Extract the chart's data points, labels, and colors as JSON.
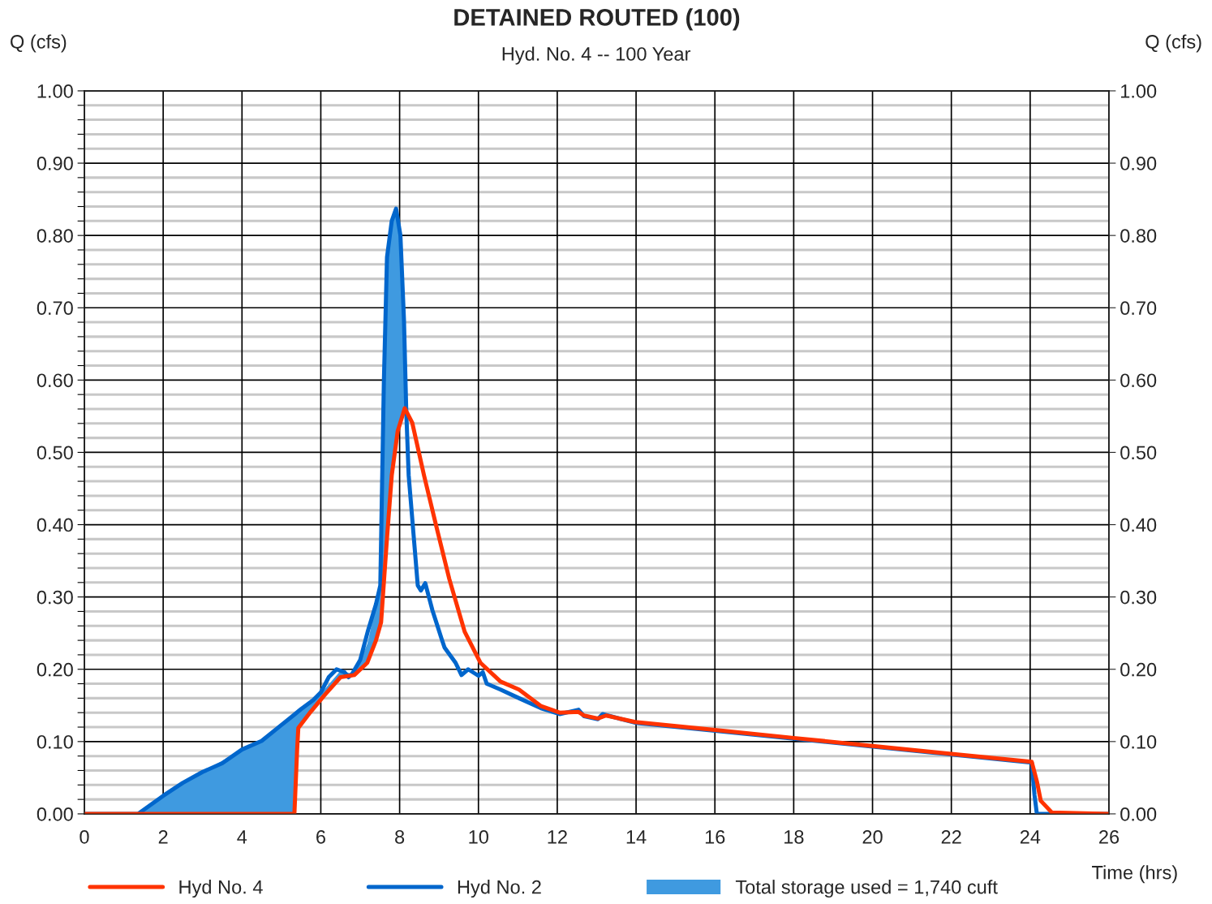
{
  "chart_data": {
    "type": "line",
    "title": "DETAINED ROUTED (100)",
    "subtitle": "Hyd. No. 4 -- 100 Year",
    "xlabel": "Time (hrs)",
    "ylabel": "Q (cfs)",
    "y2label": "Q (cfs)",
    "xlim": [
      0,
      26
    ],
    "xticks": [
      0,
      2,
      4,
      6,
      8,
      10,
      12,
      14,
      16,
      18,
      20,
      22,
      24,
      26
    ],
    "ylim": [
      0,
      1
    ],
    "yticks": [
      {
        "value": 0,
        "label": "0.00"
      },
      {
        "value": 0.02,
        "label": null
      },
      {
        "value": 0.04,
        "label": null
      },
      {
        "value": 0.06,
        "label": null
      },
      {
        "value": 0.08,
        "label": null
      },
      {
        "value": 0.1,
        "label": "0.10"
      },
      {
        "value": 0.12,
        "label": null
      },
      {
        "value": 0.14,
        "label": null
      },
      {
        "value": 0.16,
        "label": null
      },
      {
        "value": 0.18,
        "label": null
      },
      {
        "value": 0.2,
        "label": "0.20"
      },
      {
        "value": 0.22,
        "label": null
      },
      {
        "value": 0.24,
        "label": null
      },
      {
        "value": 0.26,
        "label": null
      },
      {
        "value": 0.28,
        "label": null
      },
      {
        "value": 0.3,
        "label": "0.30"
      },
      {
        "value": 0.32,
        "label": null
      },
      {
        "value": 0.34,
        "label": null
      },
      {
        "value": 0.36,
        "label": null
      },
      {
        "value": 0.38,
        "label": null
      },
      {
        "value": 0.4,
        "label": "0.40"
      },
      {
        "value": 0.42,
        "label": null
      },
      {
        "value": 0.44,
        "label": null
      },
      {
        "value": 0.46,
        "label": null
      },
      {
        "value": 0.48,
        "label": null
      },
      {
        "value": 0.5,
        "label": "0.50"
      },
      {
        "value": 0.52,
        "label": null
      },
      {
        "value": 0.54,
        "label": null
      },
      {
        "value": 0.56,
        "label": null
      },
      {
        "value": 0.58,
        "label": null
      },
      {
        "value": 0.6,
        "label": "0.60"
      },
      {
        "value": 0.62,
        "label": null
      },
      {
        "value": 0.64,
        "label": null
      },
      {
        "value": 0.66,
        "label": null
      },
      {
        "value": 0.68,
        "label": null
      },
      {
        "value": 0.7,
        "label": "0.70"
      },
      {
        "value": 0.72,
        "label": null
      },
      {
        "value": 0.74,
        "label": null
      },
      {
        "value": 0.76,
        "label": null
      },
      {
        "value": 0.78,
        "label": null
      },
      {
        "value": 0.8,
        "label": "0.80"
      },
      {
        "value": 0.82,
        "label": null
      },
      {
        "value": 0.84,
        "label": null
      },
      {
        "value": 0.86,
        "label": null
      },
      {
        "value": 0.88,
        "label": null
      },
      {
        "value": 0.9,
        "label": "0.90"
      },
      {
        "value": 0.92,
        "label": null
      },
      {
        "value": 0.94,
        "label": null
      },
      {
        "value": 0.96,
        "label": null
      },
      {
        "value": 0.98,
        "label": null
      },
      {
        "value": 1,
        "label": "1.00"
      }
    ],
    "y2lim": [
      0,
      1
    ],
    "y2ticks": [
      {
        "value": 0,
        "label": "0.00"
      },
      {
        "value": 0.1,
        "label": "0.10"
      },
      {
        "value": 0.2,
        "label": "0.20"
      },
      {
        "value": 0.3,
        "label": "0.30"
      },
      {
        "value": 0.4,
        "label": "0.40"
      },
      {
        "value": 0.5,
        "label": "0.50"
      },
      {
        "value": 0.6,
        "label": "0.60"
      },
      {
        "value": 0.7,
        "label": "0.70"
      },
      {
        "value": 0.8,
        "label": "0.80"
      },
      {
        "value": 0.9,
        "label": "0.90"
      },
      {
        "value": 1,
        "label": "1.00"
      }
    ],
    "grid": true,
    "legend": "bottom",
    "marker": "none",
    "line_style": "solid",
    "series": [
      {
        "name": "Total storage used = 1,740 cuft",
        "type": "area",
        "color": "#3f9ae0",
        "x": [
          1.36,
          2,
          3,
          4,
          4.5,
          5,
          5.3,
          5.35,
          5.43,
          5.74,
          6.09,
          6.5,
          6.85,
          7.18,
          7.51,
          7.6,
          7.68,
          7.8,
          7.91,
          7.95,
          8.05,
          8.13
        ],
        "values": [
          0,
          0.025,
          0.058,
          0.089,
          0.101,
          0.123,
          0.136,
          0.138,
          0.142,
          0.155,
          0.172,
          0.198,
          0.193,
          0.235,
          0.316,
          0.597,
          0.77,
          0.82,
          0.837,
          0.83,
          0.74,
          0.561
        ]
      },
      {
        "name": "Hyd No. 2",
        "color": "#0066cc",
        "x": [
          0,
          1.36,
          2,
          2.5,
          3,
          3.5,
          4,
          4.5,
          5,
          5.3,
          5.5,
          5.8,
          6,
          6.2,
          6.4,
          6.6,
          6.7,
          6.8,
          7,
          7.2,
          7.4,
          7.51,
          7.6,
          7.68,
          7.8,
          7.91,
          8.02,
          8.11,
          8.17,
          8.23,
          8.36,
          8.46,
          8.54,
          8.65,
          8.83,
          9.06,
          9.14,
          9.42,
          9.57,
          9.74,
          10.0,
          10.11,
          10.21,
          10.56,
          11.03,
          11.59,
          12.06,
          12.54,
          12.68,
          13.03,
          13.15,
          13.98,
          16,
          18,
          20,
          22,
          24.04,
          24.11,
          24.17,
          26
        ],
        "values": [
          0,
          0,
          0.025,
          0.043,
          0.058,
          0.07,
          0.089,
          0.101,
          0.123,
          0.136,
          0.145,
          0.157,
          0.168,
          0.189,
          0.2,
          0.196,
          0.189,
          0.194,
          0.213,
          0.254,
          0.29,
          0.316,
          0.597,
          0.77,
          0.82,
          0.837,
          0.8,
          0.684,
          0.554,
          0.468,
          0.382,
          0.316,
          0.309,
          0.319,
          0.282,
          0.243,
          0.23,
          0.209,
          0.192,
          0.2,
          0.191,
          0.196,
          0.18,
          0.172,
          0.16,
          0.146,
          0.138,
          0.144,
          0.135,
          0.131,
          0.138,
          0.126,
          0.115,
          0.104,
          0.093,
          0.082,
          0.071,
          0.026,
          0,
          0
        ]
      },
      {
        "name": "Hyd No. 4",
        "color": "#ff3300",
        "x": [
          0,
          5.33,
          5.4,
          5.43,
          5.74,
          6.09,
          6.5,
          6.85,
          7.18,
          7.4,
          7.53,
          7.6,
          7.68,
          7.8,
          7.95,
          8.13,
          8.32,
          8.62,
          8.93,
          9.26,
          9.65,
          10.05,
          10.56,
          11.03,
          11.59,
          12.06,
          12.54,
          12.68,
          13.03,
          13.24,
          13.98,
          16,
          18,
          20,
          22,
          24.04,
          24.17,
          24.27,
          24.55,
          26
        ],
        "values": [
          0,
          0,
          0.09,
          0.119,
          0.141,
          0.164,
          0.189,
          0.192,
          0.209,
          0.24,
          0.265,
          0.32,
          0.382,
          0.468,
          0.529,
          0.561,
          0.541,
          0.468,
          0.398,
          0.325,
          0.252,
          0.209,
          0.183,
          0.172,
          0.149,
          0.14,
          0.141,
          0.136,
          0.132,
          0.136,
          0.127,
          0.116,
          0.105,
          0.094,
          0.083,
          0.072,
          0.045,
          0.018,
          0.002,
          0
        ]
      }
    ]
  }
}
